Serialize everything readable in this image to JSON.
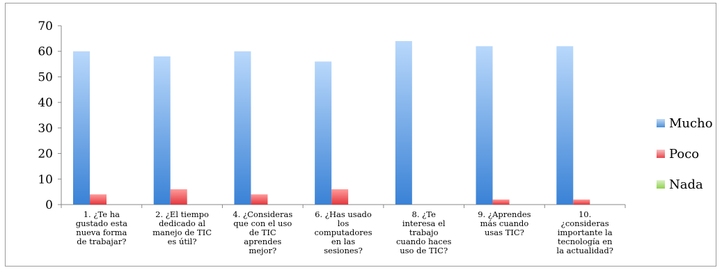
{
  "chart_data": {
    "type": "bar",
    "title": "",
    "xlabel": "",
    "ylabel": "",
    "ylim": [
      0,
      70
    ],
    "yticks": [
      "0",
      "10",
      "20",
      "30",
      "40",
      "50",
      "60",
      "70"
    ],
    "grid": false,
    "legend_position": "right",
    "categories": [
      "1. ¿Te ha gustado esta nueva forma de trabajar?",
      "2. ¿El tiempo dedicado al manejo de TIC es útil?",
      "4. ¿Consideras que con el uso de TIC aprendes mejor?",
      "6. ¿Has usado los computadores en las sesiones?",
      "8. ¿Te interesa el trabajo cuando haces uso de TIC?",
      "9. ¿Aprendes más cuando usas TIC?",
      "10. ¿consideras importante la tecnología en la actualidad?"
    ],
    "category_lines": [
      [
        "1. ¿Te ha",
        "gustado esta",
        "nueva forma",
        "de trabajar?"
      ],
      [
        "2. ¿El tiempo",
        "dedicado al",
        "manejo de TIC",
        "es útil?"
      ],
      [
        "4. ¿Consideras",
        "que con el uso",
        "de TIC",
        "aprendes",
        "mejor?"
      ],
      [
        "6. ¿Has usado",
        "los",
        "computadores",
        "en las",
        "sesiones?"
      ],
      [
        "8. ¿Te",
        "interesa el",
        "trabajo",
        "cuando haces",
        "uso de TIC?"
      ],
      [
        "9. ¿Aprendes",
        "más cuando",
        "usas TIC?"
      ],
      [
        "10.",
        "¿consideras",
        "importante la",
        "tecnología en",
        "la actualidad?"
      ]
    ],
    "series": [
      {
        "name": "Mucho",
        "color": "#4a8fd9",
        "values": [
          60,
          58,
          60,
          56,
          64,
          62,
          62
        ]
      },
      {
        "name": "Poco",
        "color": "#e8454a",
        "values": [
          4,
          6,
          4,
          6,
          0,
          2,
          2
        ]
      },
      {
        "name": "Nada",
        "color": "#8fd14f",
        "values": [
          0,
          0,
          0,
          0,
          0,
          0,
          0
        ]
      }
    ]
  }
}
